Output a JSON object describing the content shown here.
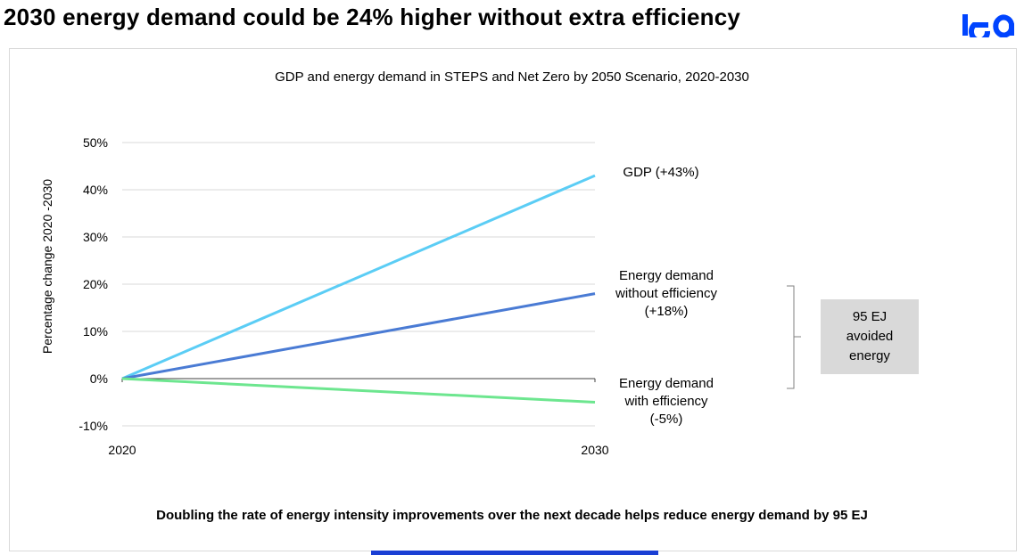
{
  "headline": "2030 energy demand could be 24% higher without extra efficiency",
  "logo": {
    "text": "iea",
    "color": "#0044ff"
  },
  "footnote": "Doubling the rate of energy intensity improvements over the next decade helps reduce energy demand by 95 EJ",
  "accent_bar_color": "#1a3fd4",
  "callout": {
    "text": "95 EJ\navoided\nenergy"
  },
  "series_labels": {
    "gdp": "GDP (+43%)",
    "without": "Energy demand\nwithout efficiency\n(+18%)",
    "with": "Energy demand\nwith efficiency\n(-5%)"
  },
  "chart_data": {
    "type": "line",
    "title": "GDP and energy demand in STEPS and Net Zero by 2050 Scenario, 2020-2030",
    "xlabel": "",
    "ylabel": "Percentage change 2020 -2030",
    "x": [
      "2020",
      "2030"
    ],
    "ylim": [
      -10,
      50
    ],
    "yticks": [
      "50%",
      "40%",
      "30%",
      "20%",
      "10%",
      "0%",
      "-10%"
    ],
    "yticks_values": [
      50,
      40,
      30,
      20,
      10,
      0,
      -10
    ],
    "grid": true,
    "series": [
      {
        "name": "GDP (+43%)",
        "values": [
          0,
          43
        ],
        "color": "#5bcdf5"
      },
      {
        "name": "Energy demand without efficiency (+18%)",
        "values": [
          0,
          18
        ],
        "color": "#4a7bd4"
      },
      {
        "name": "Energy demand with efficiency (-5%)",
        "values": [
          0,
          -5
        ],
        "color": "#6de68f"
      }
    ]
  }
}
